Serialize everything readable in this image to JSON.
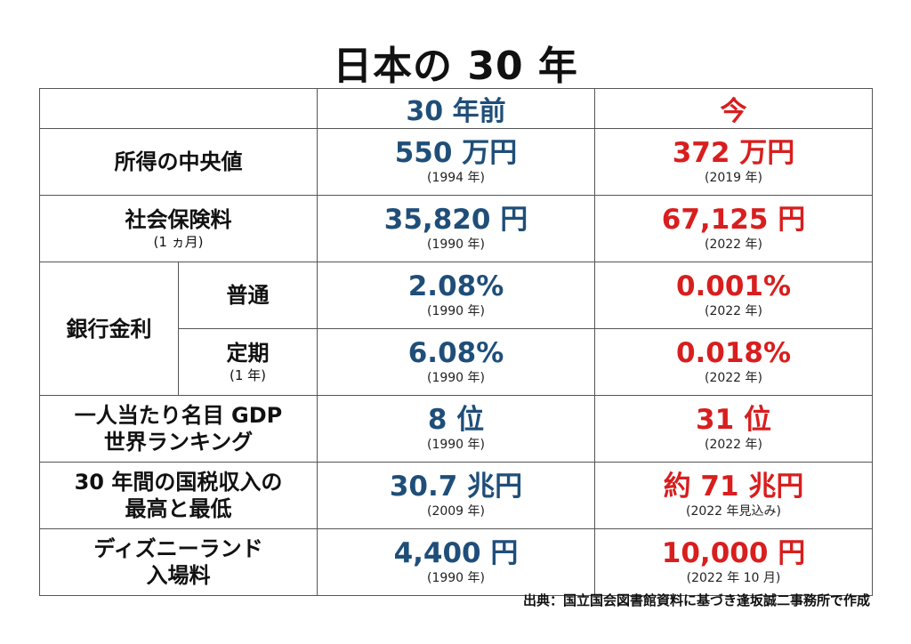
{
  "title": "日本の 30 年",
  "header": {
    "old": "30 年前",
    "now": "今"
  },
  "rows": {
    "income": {
      "label": "所得の中央値",
      "old_value": "550 万円",
      "old_year": "(1994 年)",
      "now_value": "372 万円",
      "now_year": "(2019 年)"
    },
    "social_insurance": {
      "label": "社会保険料",
      "sub": "(1 ヵ月)",
      "old_value": "35,820 円",
      "old_year": "(1990 年)",
      "now_value": "67,125 円",
      "now_year": "(2022 年)"
    },
    "bank_interest": {
      "label": "銀行金利",
      "ordinary": {
        "label": "普通",
        "old_value": "2.08%",
        "old_year": "(1990 年)",
        "now_value": "0.001%",
        "now_year": "(2022 年)"
      },
      "fixed": {
        "label": "定期",
        "sub": "(1 年)",
        "old_value": "6.08%",
        "old_year": "(1990 年)",
        "now_value": "0.018%",
        "now_year": "(2022 年)"
      }
    },
    "gdp": {
      "label_line1": "一人当たり名目 GDP",
      "label_line2": "世界ランキング",
      "old_value": "8 位",
      "old_year": "(1990 年)",
      "now_value": "31 位",
      "now_year": "(2022 年)"
    },
    "tax": {
      "label_line1": "30 年間の国税収入の",
      "label_line2": "最高と最低",
      "old_value": "30.7 兆円",
      "old_year": "(2009 年)",
      "now_value": "約 71 兆円",
      "now_year": "(2022 年見込み)"
    },
    "disney": {
      "label_line1": "ディズニーランド",
      "label_line2": "入場料",
      "old_value": "4,400 円",
      "old_year": "(1990 年)",
      "now_value": "10,000 円",
      "now_year": "(2022 年 10 月)"
    }
  },
  "source": "出典：国立国会図書館資料に基づき逢坂誠二事務所で作成",
  "colors": {
    "old": "#1f4e79",
    "now": "#d81e1e"
  }
}
